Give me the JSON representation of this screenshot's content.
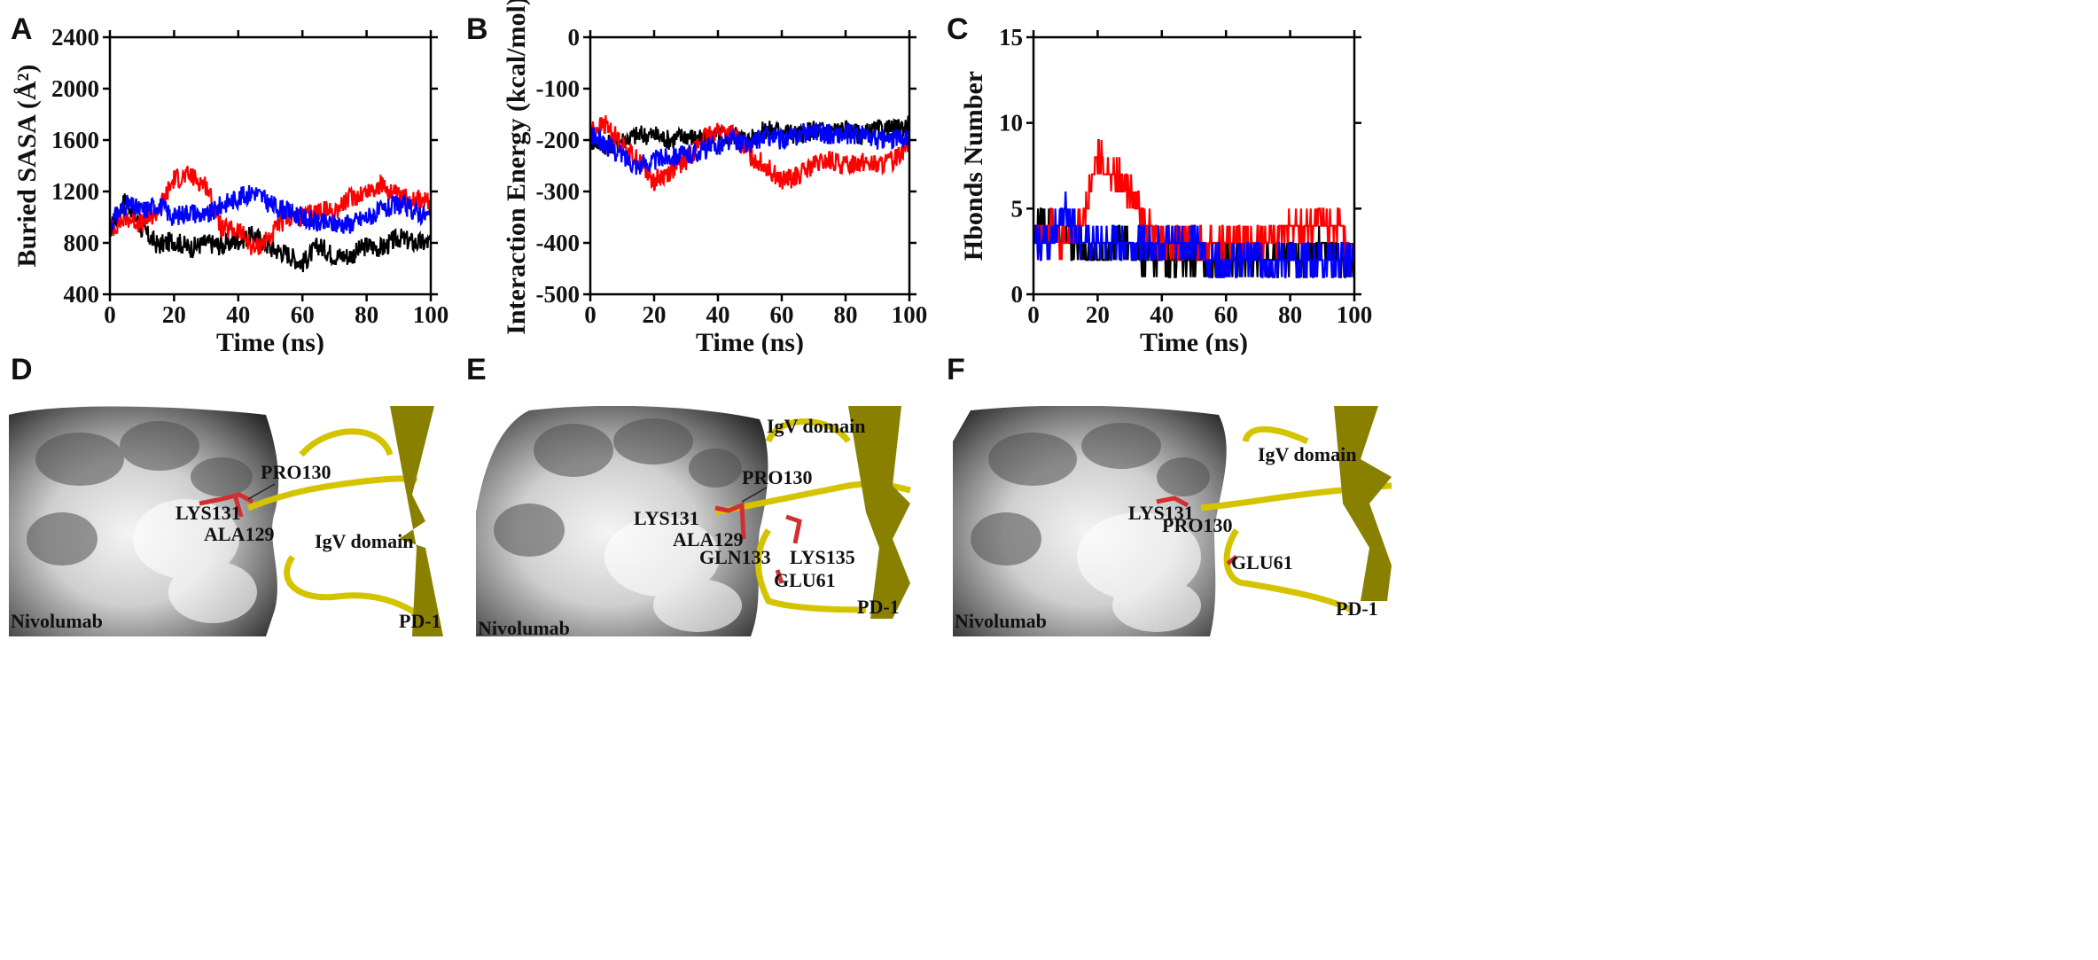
{
  "panel_letters": [
    "A",
    "B",
    "C",
    "D",
    "E",
    "F"
  ],
  "chart_data": [
    {
      "type": "line",
      "panel": "A",
      "xlabel": "Time (ns)",
      "ylabel": "Buried SASA (Å²)",
      "xlim": [
        0,
        100
      ],
      "ylim": [
        400,
        2400
      ],
      "xticks": [
        0,
        20,
        40,
        60,
        80,
        100
      ],
      "yticks": [
        400,
        800,
        1200,
        1600,
        2000,
        2400
      ],
      "grid": false,
      "series": [
        {
          "name": "black",
          "color": "#000000",
          "x": [
            0,
            5,
            10,
            15,
            20,
            25,
            30,
            35,
            40,
            45,
            50,
            55,
            60,
            65,
            70,
            75,
            80,
            85,
            90,
            95,
            100
          ],
          "y": [
            900,
            1150,
            900,
            780,
            820,
            760,
            800,
            780,
            820,
            860,
            760,
            720,
            640,
            780,
            700,
            700,
            780,
            760,
            840,
            800,
            800
          ]
        },
        {
          "name": "red",
          "color": "#ff0000",
          "x": [
            0,
            5,
            10,
            15,
            20,
            25,
            30,
            35,
            40,
            45,
            50,
            55,
            60,
            65,
            70,
            75,
            80,
            85,
            90,
            95,
            100
          ],
          "y": [
            900,
            1000,
            950,
            1050,
            1300,
            1320,
            1250,
            900,
            900,
            750,
            850,
            1000,
            1000,
            1050,
            1050,
            1150,
            1200,
            1250,
            1150,
            1150,
            1100
          ]
        },
        {
          "name": "blue",
          "color": "#0000ff",
          "x": [
            0,
            5,
            10,
            15,
            20,
            25,
            30,
            35,
            40,
            45,
            50,
            55,
            60,
            65,
            70,
            75,
            80,
            85,
            90,
            95,
            100
          ],
          "y": [
            950,
            1100,
            1050,
            1100,
            1000,
            1050,
            1000,
            1100,
            1150,
            1200,
            1100,
            1050,
            1000,
            950,
            950,
            950,
            1000,
            1050,
            1100,
            1050,
            1000
          ]
        }
      ]
    },
    {
      "type": "line",
      "panel": "B",
      "xlabel": "Time (ns)",
      "ylabel": "Interaction Energy (kcal/mol)",
      "xlim": [
        0,
        100
      ],
      "ylim": [
        -500,
        0
      ],
      "xticks": [
        0,
        20,
        40,
        60,
        80,
        100
      ],
      "yticks": [
        -500,
        -400,
        -300,
        -200,
        -100,
        0
      ],
      "grid": false,
      "series": [
        {
          "name": "black",
          "color": "#000000",
          "x": [
            0,
            5,
            10,
            15,
            20,
            25,
            30,
            35,
            40,
            45,
            50,
            55,
            60,
            65,
            70,
            75,
            80,
            85,
            90,
            95,
            100
          ],
          "y": [
            -200,
            -210,
            -200,
            -190,
            -190,
            -200,
            -190,
            -200,
            -190,
            -190,
            -200,
            -180,
            -180,
            -190,
            -180,
            -180,
            -180,
            -190,
            -180,
            -180,
            -170
          ]
        },
        {
          "name": "red",
          "color": "#ff0000",
          "x": [
            0,
            5,
            10,
            15,
            20,
            25,
            30,
            35,
            40,
            45,
            50,
            55,
            60,
            65,
            70,
            75,
            80,
            85,
            90,
            95,
            100
          ],
          "y": [
            -180,
            -170,
            -210,
            -240,
            -280,
            -260,
            -240,
            -200,
            -180,
            -190,
            -230,
            -250,
            -280,
            -270,
            -250,
            -240,
            -250,
            -240,
            -250,
            -240,
            -200
          ]
        },
        {
          "name": "blue",
          "color": "#0000ff",
          "x": [
            0,
            5,
            10,
            15,
            20,
            25,
            30,
            35,
            40,
            45,
            50,
            55,
            60,
            65,
            70,
            75,
            80,
            85,
            90,
            95,
            100
          ],
          "y": [
            -190,
            -210,
            -230,
            -250,
            -240,
            -230,
            -230,
            -220,
            -210,
            -200,
            -210,
            -190,
            -200,
            -190,
            -180,
            -190,
            -190,
            -190,
            -200,
            -200,
            -190
          ]
        }
      ]
    },
    {
      "type": "line",
      "panel": "C",
      "xlabel": "Time (ns)",
      "ylabel": "Hbonds Number",
      "xlim": [
        0,
        100
      ],
      "ylim": [
        0,
        15
      ],
      "xticks": [
        0,
        20,
        40,
        60,
        80,
        100
      ],
      "yticks": [
        0,
        5,
        10,
        15
      ],
      "grid": false,
      "series": [
        {
          "name": "black",
          "color": "#000000",
          "x": [
            0,
            5,
            10,
            15,
            20,
            25,
            30,
            35,
            40,
            45,
            50,
            55,
            60,
            65,
            70,
            75,
            80,
            85,
            90,
            95,
            100
          ],
          "y": [
            4,
            4,
            3,
            3,
            2,
            3,
            3,
            2,
            2,
            2,
            2,
            2,
            2,
            2,
            2,
            2,
            2,
            2,
            3,
            2,
            2
          ]
        },
        {
          "name": "red",
          "color": "#ff0000",
          "x": [
            0,
            5,
            10,
            15,
            20,
            25,
            30,
            35,
            40,
            45,
            50,
            55,
            60,
            65,
            70,
            75,
            80,
            85,
            90,
            95,
            100
          ],
          "y": [
            3,
            4,
            3,
            4,
            8,
            7,
            6,
            4,
            3,
            3,
            3,
            3,
            3,
            3,
            3,
            3,
            4,
            4,
            4,
            4,
            2
          ]
        },
        {
          "name": "blue",
          "color": "#0000ff",
          "x": [
            0,
            5,
            10,
            15,
            20,
            25,
            30,
            35,
            40,
            45,
            50,
            55,
            60,
            65,
            70,
            75,
            80,
            85,
            90,
            95,
            100
          ],
          "y": [
            3,
            3,
            5,
            3,
            3,
            3,
            3,
            3,
            3,
            3,
            3,
            2,
            2,
            2,
            2,
            2,
            2,
            2,
            2,
            2,
            2
          ]
        }
      ]
    }
  ],
  "structures": [
    {
      "panel": "D",
      "labels": [
        "PRO130",
        "LYS131",
        "ALA129",
        "IgV domain",
        "Nivolumab",
        "PD-1"
      ]
    },
    {
      "panel": "E",
      "labels": [
        "IgV domain",
        "PRO130",
        "LYS131",
        "ALA129",
        "GLN133",
        "LYS135",
        "GLU61",
        "Nivolumab",
        "PD-1"
      ]
    },
    {
      "panel": "F",
      "labels": [
        "IgV domain",
        "LYS131",
        "PRO130",
        "GLU61",
        "Nivolumab",
        "PD-1"
      ]
    }
  ]
}
